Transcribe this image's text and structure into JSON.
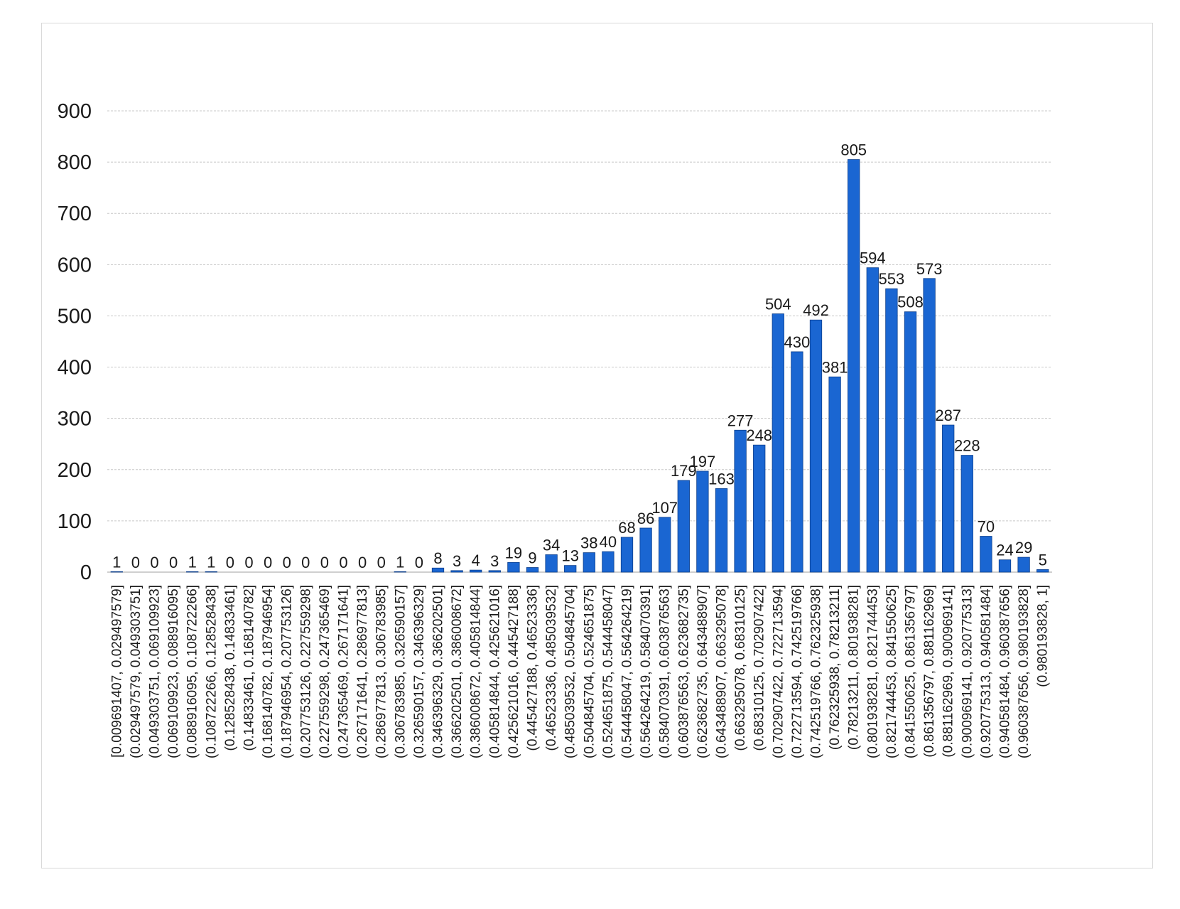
{
  "chart_data": {
    "type": "bar",
    "title": "",
    "xlabel": "",
    "ylabel": "",
    "ylim": [
      0,
      900
    ],
    "yticks": [
      0,
      100,
      200,
      300,
      400,
      500,
      600,
      700,
      800,
      900
    ],
    "grid": "horizontal-dashed",
    "legend": "none",
    "bar_color": "#1a66d2",
    "categories": [
      "[0.009691407, 0.029497579]",
      "(0.029497579, 0.049303751]",
      "(0.049303751, 0.069109923]",
      "(0.069109923, 0.088916095]",
      "(0.088916095, 0.108722266]",
      "(0.108722266, 0.128528438]",
      "(0.128528438, 0.14833461]",
      "(0.14833461, 0.168140782]",
      "(0.168140782, 0.187946954]",
      "(0.187946954, 0.207753126]",
      "(0.207753126, 0.227559298]",
      "(0.227559298, 0.247365469]",
      "(0.247365469, 0.267171641]",
      "(0.267171641, 0.286977813]",
      "(0.286977813, 0.306783985]",
      "(0.306783985, 0.326590157]",
      "(0.326590157, 0.346396329]",
      "(0.346396329, 0.366202501]",
      "(0.366202501, 0.386008672]",
      "(0.386008672, 0.405814844]",
      "(0.405814844, 0.425621016]",
      "(0.425621016, 0.445427188]",
      "(0.445427188, 0.46523336]",
      "(0.46523336, 0.485039532]",
      "(0.485039532, 0.504845704]",
      "(0.504845704, 0.524651875]",
      "(0.524651875, 0.544458047]",
      "(0.544458047, 0.564264219]",
      "(0.564264219, 0.584070391]",
      "(0.584070391, 0.603876563]",
      "(0.603876563, 0.623682735]",
      "(0.623682735, 0.643488907]",
      "(0.643488907, 0.663295078]",
      "(0.663295078, 0.68310125]",
      "(0.68310125, 0.702907422]",
      "(0.702907422, 0.722713594]",
      "(0.722713594, 0.742519766]",
      "(0.742519766, 0.762325938]",
      "(0.762325938, 0.78213211]",
      "(0.78213211, 0.801938281]",
      "(0.801938281, 0.821744453]",
      "(0.821744453, 0.841550625]",
      "(0.841550625, 0.861356797]",
      "(0.861356797, 0.881162969]",
      "(0.881162969, 0.900969141]",
      "(0.900969141, 0.920775313]",
      "(0.920775313, 0.940581484]",
      "(0.940581484, 0.960387656]",
      "(0.960387656, 0.980193828]",
      "(0.980193828, 1]"
    ],
    "values": [
      1,
      0,
      0,
      0,
      1,
      1,
      0,
      0,
      0,
      0,
      0,
      0,
      0,
      0,
      0,
      1,
      0,
      8,
      3,
      4,
      3,
      19,
      9,
      34,
      13,
      38,
      40,
      68,
      86,
      107,
      179,
      197,
      163,
      277,
      248,
      504,
      430,
      492,
      381,
      805,
      594,
      553,
      508,
      573,
      287,
      228,
      70,
      24,
      29,
      5
    ]
  }
}
